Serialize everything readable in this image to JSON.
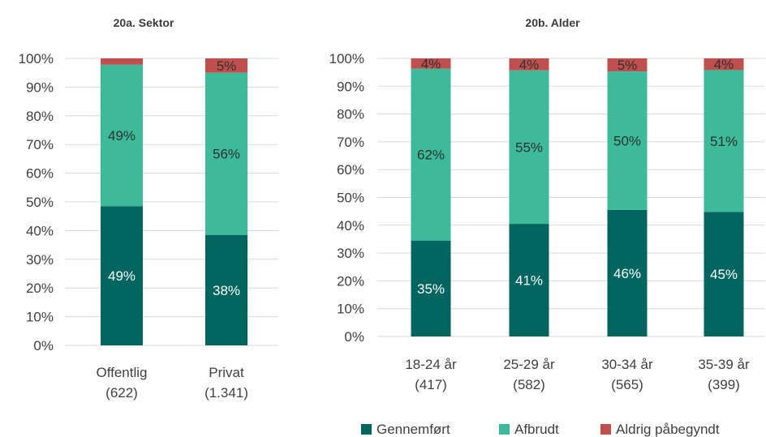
{
  "colors": {
    "gennemfort": "#00655f",
    "afbrudt": "#3cba9a",
    "aldrig": "#c0504d"
  },
  "legend": [
    {
      "name": "Gennemført",
      "color_key": "gennemfort"
    },
    {
      "name": "Afbrudt",
      "color_key": "afbrudt"
    },
    {
      "name": "Aldrig påbegyndt",
      "color_key": "aldrig"
    }
  ],
  "chart_data": [
    {
      "type": "bar",
      "stacked": true,
      "title": "20a. Sektor",
      "y_ticks": [
        "0%",
        "10%",
        "20%",
        "30%",
        "40%",
        "50%",
        "60%",
        "70%",
        "80%",
        "90%",
        "100%"
      ],
      "ylim": [
        0,
        100
      ],
      "categories": [
        {
          "line1": "Offentlig",
          "line2": "(622)"
        },
        {
          "line1": "Privat",
          "line2": "(1.341)"
        }
      ],
      "series": [
        {
          "name": "Gennemført",
          "color_key": "gennemfort",
          "values": [
            48.5,
            38.5
          ],
          "labels": [
            "49%",
            "38%"
          ]
        },
        {
          "name": "Afbrudt",
          "color_key": "afbrudt",
          "values": [
            49.3,
            56.5
          ],
          "labels": [
            "49%",
            "56%"
          ]
        },
        {
          "name": "Aldrig påbegyndt",
          "color_key": "aldrig",
          "values": [
            2.2,
            5.0
          ],
          "labels": [
            "",
            "5%"
          ]
        }
      ]
    },
    {
      "type": "bar",
      "stacked": true,
      "title": "20b. Alder",
      "y_ticks": [
        "0%",
        "10%",
        "20%",
        "30%",
        "40%",
        "50%",
        "60%",
        "70%",
        "80%",
        "90%",
        "100%"
      ],
      "ylim": [
        0,
        100
      ],
      "categories": [
        {
          "line1": "18-24 år",
          "line2": "(417)"
        },
        {
          "line1": "25-29 år",
          "line2": "(582)"
        },
        {
          "line1": "30-34 år",
          "line2": "(565)"
        },
        {
          "line1": "35-39 år",
          "line2": "(399)"
        }
      ],
      "series": [
        {
          "name": "Gennemført",
          "color_key": "gennemfort",
          "values": [
            34.5,
            40.5,
            45.5,
            44.8
          ],
          "labels": [
            "35%",
            "41%",
            "46%",
            "45%"
          ]
        },
        {
          "name": "Afbrudt",
          "color_key": "afbrudt",
          "values": [
            61.8,
            55.2,
            49.8,
            51.0
          ],
          "labels": [
            "62%",
            "55%",
            "50%",
            "51%"
          ]
        },
        {
          "name": "Aldrig påbegyndt",
          "color_key": "aldrig",
          "values": [
            3.7,
            4.3,
            4.7,
            4.2
          ],
          "labels": [
            "4%",
            "4%",
            "5%",
            "4%"
          ]
        }
      ]
    }
  ]
}
